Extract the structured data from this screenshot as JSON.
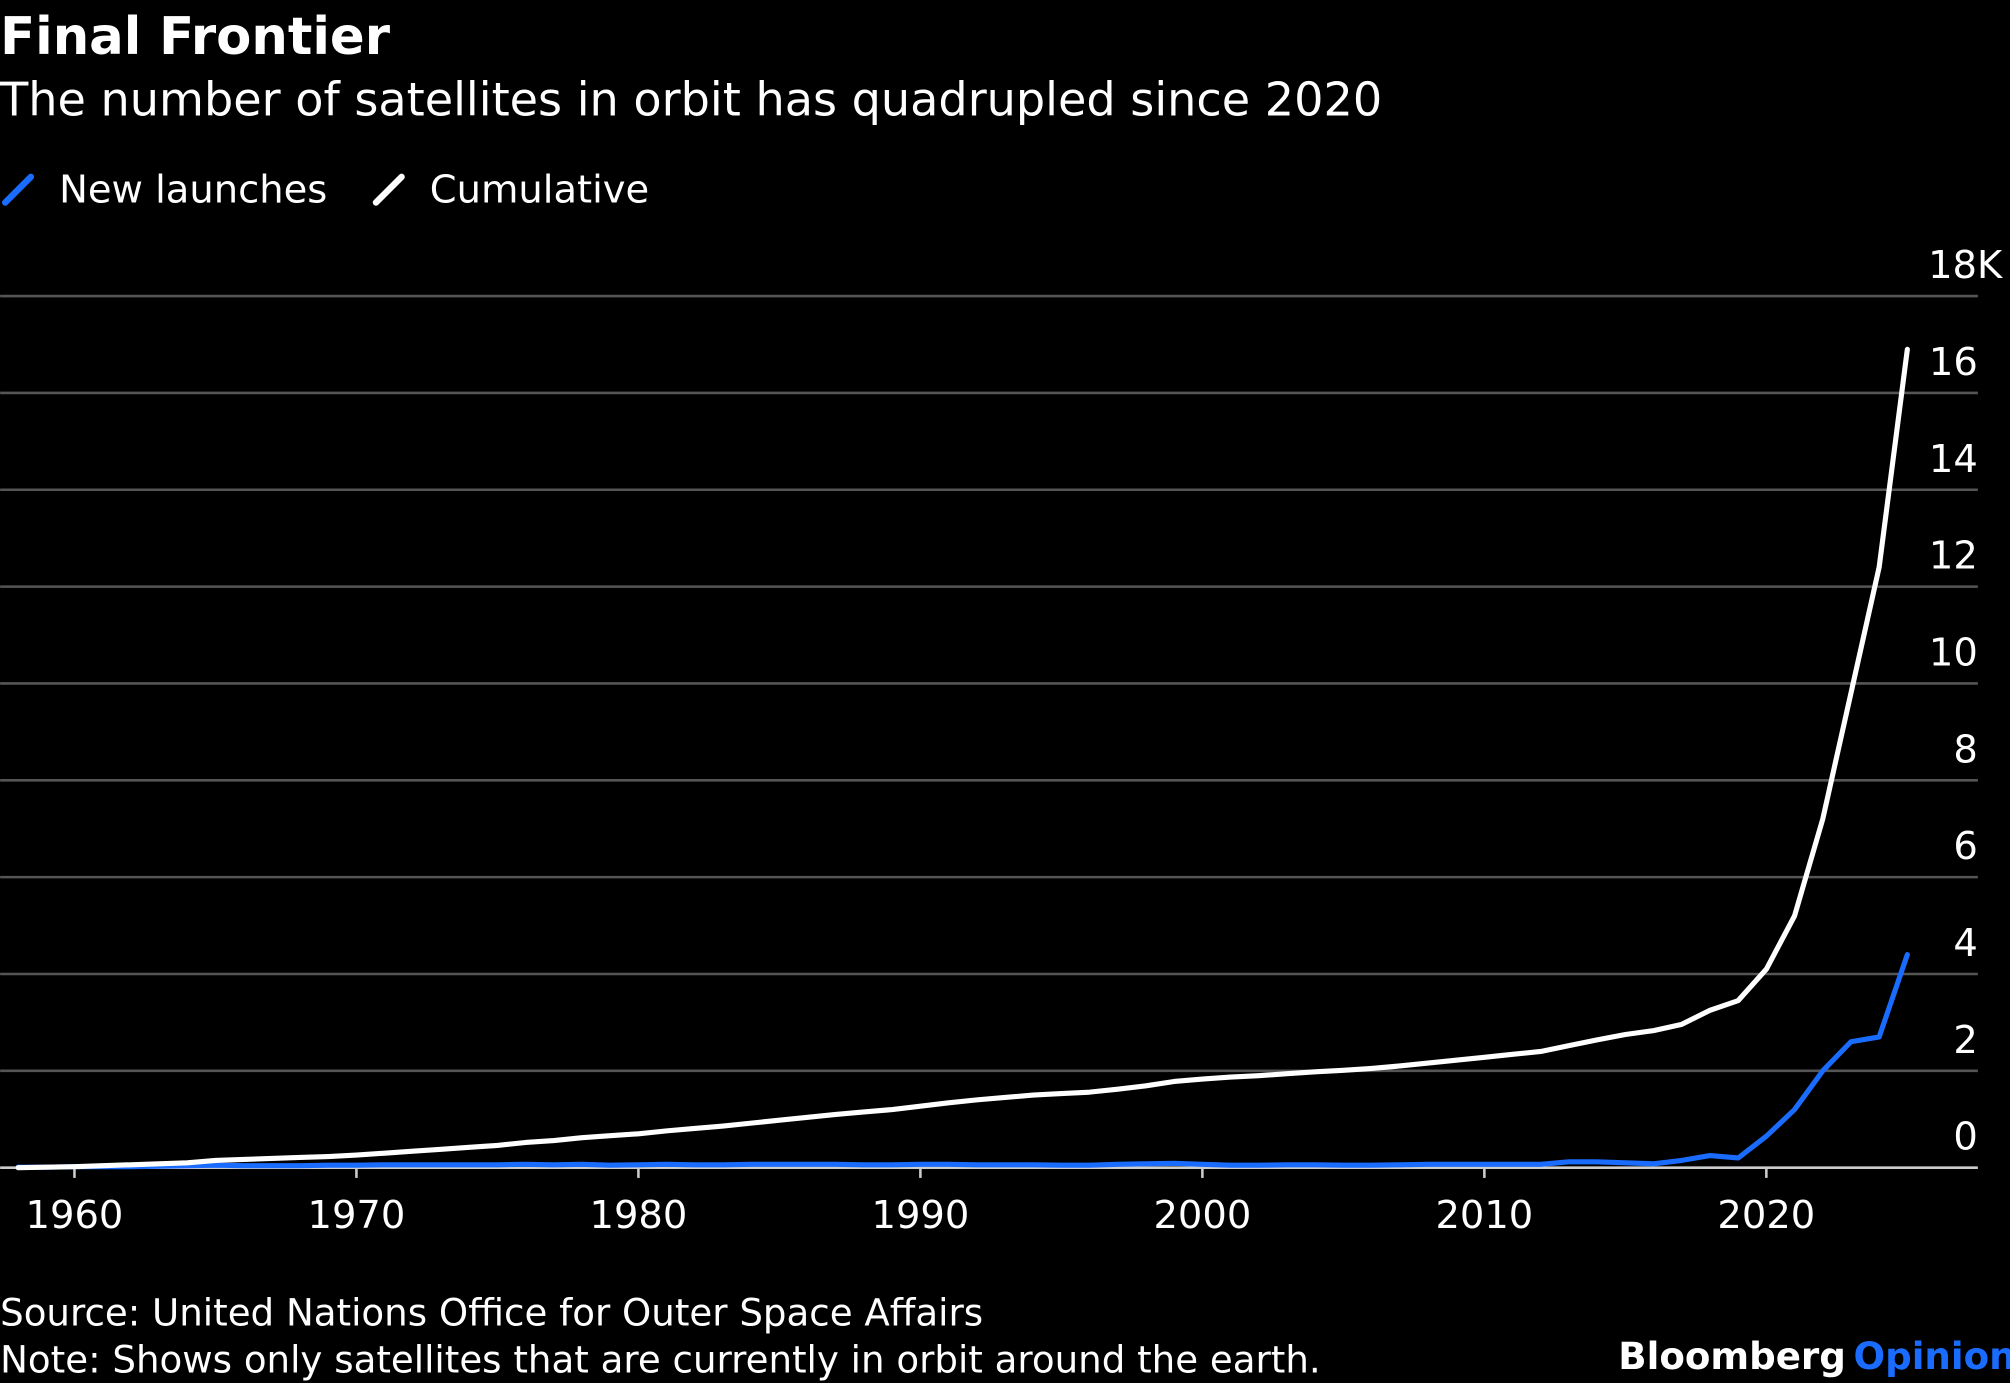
{
  "chart_data": {
    "type": "line",
    "title": "Final Frontier",
    "subtitle": "The number of satellites in orbit has quadrupled since 2020",
    "x": [
      1958,
      1959,
      1960,
      1961,
      1962,
      1963,
      1964,
      1965,
      1966,
      1967,
      1968,
      1969,
      1970,
      1971,
      1972,
      1973,
      1974,
      1975,
      1976,
      1977,
      1978,
      1979,
      1980,
      1981,
      1982,
      1983,
      1984,
      1985,
      1986,
      1987,
      1988,
      1989,
      1990,
      1991,
      1992,
      1993,
      1994,
      1995,
      1996,
      1997,
      1998,
      1999,
      2000,
      2001,
      2002,
      2003,
      2004,
      2005,
      2006,
      2007,
      2008,
      2009,
      2010,
      2011,
      2012,
      2013,
      2014,
      2015,
      2016,
      2017,
      2018,
      2019,
      2020,
      2021,
      2022,
      2023,
      2024,
      2025
    ],
    "series": [
      {
        "name": "New launches",
        "color": "#1a6cff",
        "values": [
          0.01,
          0.01,
          0.02,
          0.02,
          0.02,
          0.03,
          0.04,
          0.05,
          0.04,
          0.04,
          0.04,
          0.05,
          0.05,
          0.06,
          0.06,
          0.06,
          0.06,
          0.06,
          0.07,
          0.06,
          0.07,
          0.05,
          0.06,
          0.07,
          0.06,
          0.06,
          0.07,
          0.07,
          0.07,
          0.07,
          0.06,
          0.06,
          0.07,
          0.07,
          0.06,
          0.06,
          0.06,
          0.05,
          0.05,
          0.07,
          0.08,
          0.09,
          0.07,
          0.05,
          0.05,
          0.06,
          0.06,
          0.05,
          0.05,
          0.06,
          0.07,
          0.07,
          0.07,
          0.07,
          0.07,
          0.12,
          0.12,
          0.1,
          0.08,
          0.15,
          0.25,
          0.2,
          0.65,
          1.2,
          2.0,
          2.6,
          2.7,
          4.4
        ]
      },
      {
        "name": "Cumulative",
        "color": "#ffffff",
        "values": [
          0,
          0.01,
          0.02,
          0.04,
          0.06,
          0.08,
          0.1,
          0.15,
          0.17,
          0.19,
          0.21,
          0.23,
          0.26,
          0.3,
          0.34,
          0.38,
          0.42,
          0.46,
          0.52,
          0.56,
          0.62,
          0.66,
          0.7,
          0.76,
          0.81,
          0.86,
          0.92,
          0.98,
          1.04,
          1.1,
          1.15,
          1.2,
          1.27,
          1.34,
          1.4,
          1.45,
          1.5,
          1.53,
          1.56,
          1.62,
          1.69,
          1.78,
          1.83,
          1.87,
          1.9,
          1.94,
          1.98,
          2.01,
          2.05,
          2.1,
          2.16,
          2.22,
          2.28,
          2.34,
          2.4,
          2.52,
          2.64,
          2.75,
          2.83,
          2.96,
          3.25,
          3.45,
          4.1,
          5.2,
          7.2,
          9.8,
          12.4,
          16.9
        ]
      }
    ],
    "xlim": [
      1958,
      2027.5
    ],
    "xticks": [
      1960,
      1970,
      1980,
      1990,
      2000,
      2010,
      2020
    ],
    "ylim": [
      0,
      18
    ],
    "yticks": [
      0,
      2,
      4,
      6,
      8,
      10,
      12,
      14,
      16,
      {
        "value": 18,
        "label": "18K"
      }
    ],
    "grid": true,
    "source": "Source: United Nations Office for Outer Space Affairs",
    "note": "Note: Shows only satellites that are currently in orbit around the earth.",
    "brand": "Bloomberg",
    "brand_suffix": "Opinion"
  }
}
